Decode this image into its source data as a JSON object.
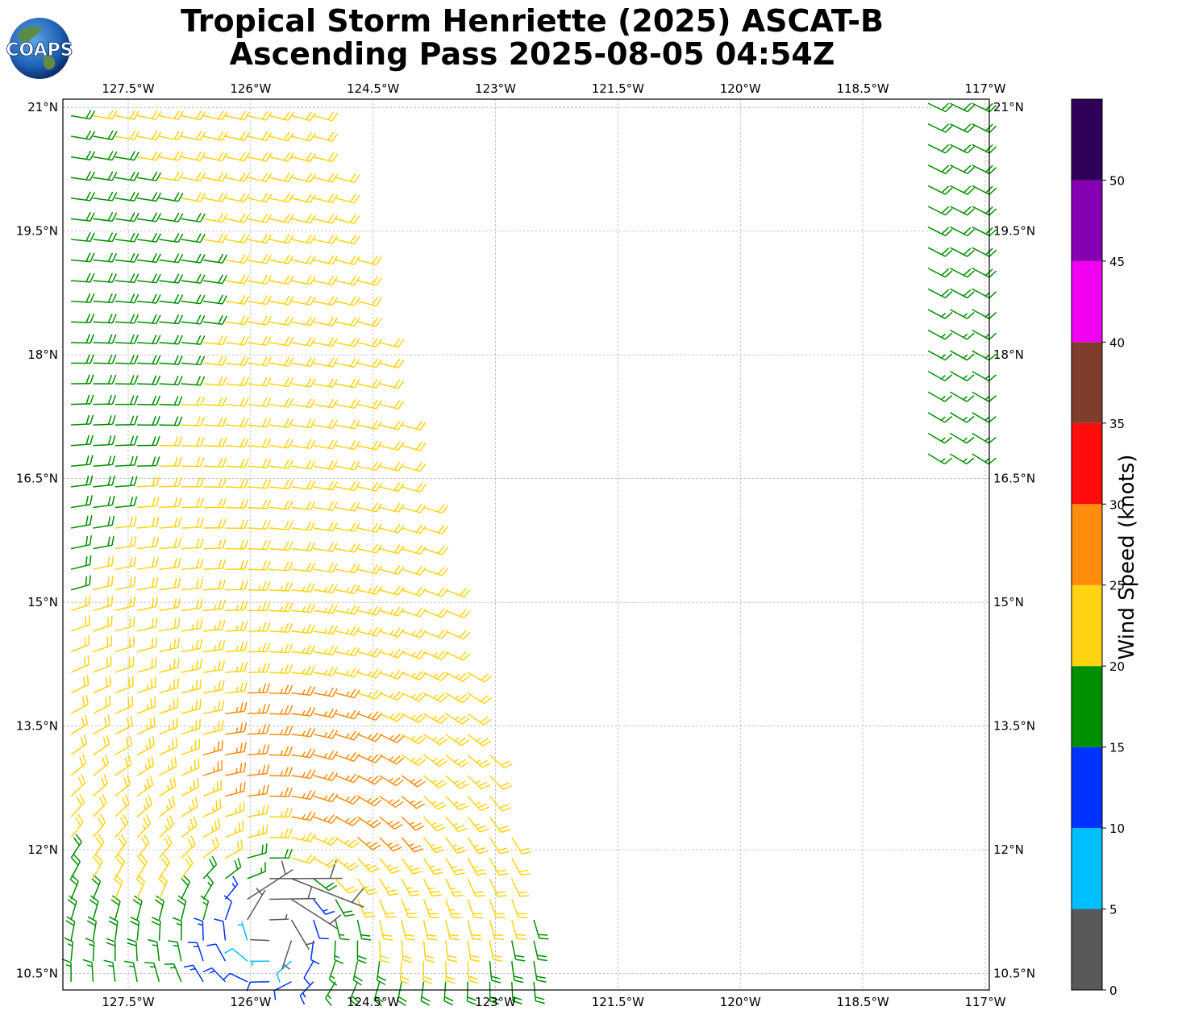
{
  "header": {
    "title_line1": "Tropical Storm Henriette (2025) ASCAT-B",
    "title_line2": "Ascending Pass 2025-08-05 04:54Z",
    "logo_text": "COAPS"
  },
  "map": {
    "lon_range": [
      -128.3,
      -116.95
    ],
    "lat_range": [
      10.3,
      21.1
    ],
    "lon_ticks": [
      {
        "value": -127.5,
        "label": "127.5°W"
      },
      {
        "value": -126.0,
        "label": "126°W"
      },
      {
        "value": -124.5,
        "label": "124.5°W"
      },
      {
        "value": -123.0,
        "label": "123°W"
      },
      {
        "value": -121.5,
        "label": "121.5°W"
      },
      {
        "value": -120.0,
        "label": "120°W"
      },
      {
        "value": -118.5,
        "label": "118.5°W"
      },
      {
        "value": -117.0,
        "label": "117°W"
      }
    ],
    "lat_ticks": [
      {
        "value": 21.0,
        "label": "21°N"
      },
      {
        "value": 19.5,
        "label": "19.5°N"
      },
      {
        "value": 18.0,
        "label": "18°N"
      },
      {
        "value": 16.5,
        "label": "16.5°N"
      },
      {
        "value": 15.0,
        "label": "15°N"
      },
      {
        "value": 13.5,
        "label": "13.5°N"
      },
      {
        "value": 12.0,
        "label": "12°N"
      },
      {
        "value": 10.5,
        "label": "10.5°N"
      }
    ],
    "storm_center": {
      "lon": -125.7,
      "lat": 11.25
    },
    "swaths": [
      {
        "name": "west",
        "lat_min": 10.3,
        "lat_max": 21.1,
        "lon_west": -128.3,
        "lon_east_south": -122.3,
        "lon_east_north": -125.2
      },
      {
        "name": "east",
        "lat_min": 16.7,
        "lat_max": 21.1,
        "lon_west": -117.8,
        "lon_east_south": -116.95,
        "lon_east_north": -116.95
      }
    ]
  },
  "colorbar": {
    "label": "Wind Speed (knots)",
    "bins": [
      {
        "min": 0,
        "max": 5,
        "color": "#595959"
      },
      {
        "min": 5,
        "max": 10,
        "color": "#00bfff"
      },
      {
        "min": 10,
        "max": 15,
        "color": "#0033ff"
      },
      {
        "min": 15,
        "max": 20,
        "color": "#008f00"
      },
      {
        "min": 20,
        "max": 25,
        "color": "#ffd311"
      },
      {
        "min": 25,
        "max": 30,
        "color": "#ff8c0d"
      },
      {
        "min": 30,
        "max": 35,
        "color": "#ff0d0d"
      },
      {
        "min": 35,
        "max": 40,
        "color": "#803d2b"
      },
      {
        "min": 40,
        "max": 45,
        "color": "#f200f2"
      },
      {
        "min": 45,
        "max": 50,
        "color": "#8600b3"
      },
      {
        "min": 50,
        "max": 55,
        "color": "#2e0059"
      }
    ],
    "tick_labels": [
      "0",
      "5",
      "10",
      "15",
      "20",
      "25",
      "30",
      "35",
      "40",
      "45",
      "50"
    ]
  }
}
